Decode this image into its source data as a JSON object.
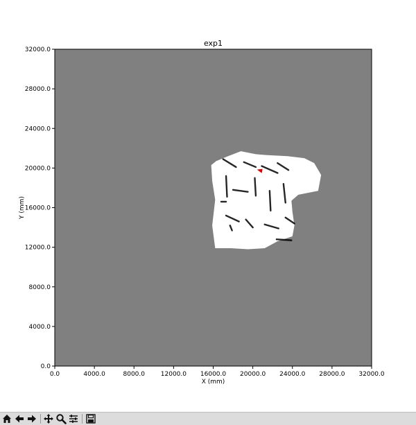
{
  "chart_data": {
    "type": "heatmap",
    "title": "exp1",
    "xlabel": "X (mm)",
    "ylabel": "Y (mm)",
    "xlim": [
      0,
      32000
    ],
    "ylim": [
      0,
      32000
    ],
    "xticks": [
      0,
      4000,
      8000,
      12000,
      16000,
      20000,
      24000,
      28000,
      32000
    ],
    "yticks": [
      0,
      4000,
      8000,
      12000,
      16000,
      20000,
      24000,
      28000,
      32000
    ],
    "xtick_labels": [
      "0.0",
      "4000.0",
      "8000.0",
      "12000.0",
      "16000.0",
      "20000.0",
      "24000.0",
      "28000.0",
      "32000.0"
    ],
    "ytick_labels": [
      "0.0",
      "4000.0",
      "8000.0",
      "12000.0",
      "16000.0",
      "20000.0",
      "24000.0",
      "28000.0",
      "32000.0"
    ],
    "background_color": "#808080",
    "explored_color": "#ffffff",
    "obstacle_color": "#000000",
    "robot_marker": {
      "x": 20700,
      "y": 19700,
      "color": "#e00000"
    },
    "explored_region": [
      [
        15800,
        20300
      ],
      [
        16300,
        20700
      ],
      [
        17500,
        21200
      ],
      [
        18800,
        21700
      ],
      [
        20300,
        21400
      ],
      [
        21500,
        21300
      ],
      [
        23500,
        21200
      ],
      [
        25200,
        21000
      ],
      [
        26200,
        20500
      ],
      [
        26900,
        19300
      ],
      [
        26600,
        17700
      ],
      [
        24600,
        17300
      ],
      [
        23900,
        16700
      ],
      [
        24000,
        15600
      ],
      [
        24200,
        14200
      ],
      [
        24000,
        13100
      ],
      [
        22500,
        12600
      ],
      [
        21200,
        11900
      ],
      [
        19500,
        11800
      ],
      [
        17800,
        11900
      ],
      [
        16200,
        11900
      ],
      [
        15900,
        14200
      ],
      [
        16200,
        16800
      ],
      [
        15900,
        18700
      ]
    ],
    "obstacles": [
      [
        [
          17000,
          20900
        ],
        [
          18300,
          20100
        ]
      ],
      [
        [
          19100,
          20600
        ],
        [
          20300,
          20100
        ]
      ],
      [
        [
          20900,
          20200
        ],
        [
          22500,
          19500
        ]
      ],
      [
        [
          22500,
          20500
        ],
        [
          23600,
          19800
        ]
      ],
      [
        [
          17300,
          19200
        ],
        [
          17400,
          17100
        ]
      ],
      [
        [
          20200,
          19000
        ],
        [
          20300,
          17200
        ]
      ],
      [
        [
          21700,
          17700
        ],
        [
          21800,
          15700
        ]
      ],
      [
        [
          23100,
          18400
        ],
        [
          23300,
          16500
        ]
      ],
      [
        [
          16800,
          16600
        ],
        [
          17300,
          16600
        ]
      ],
      [
        [
          17300,
          15200
        ],
        [
          18600,
          14600
        ]
      ],
      [
        [
          17700,
          14200
        ],
        [
          17900,
          13700
        ]
      ],
      [
        [
          19300,
          14800
        ],
        [
          20000,
          14000
        ]
      ],
      [
        [
          21200,
          14300
        ],
        [
          22600,
          13900
        ]
      ],
      [
        [
          23300,
          15000
        ],
        [
          24200,
          14400
        ]
      ],
      [
        [
          22400,
          12800
        ],
        [
          23900,
          12700
        ]
      ],
      [
        [
          18000,
          17800
        ],
        [
          19500,
          17600
        ]
      ]
    ]
  },
  "toolbar": {
    "buttons": [
      "home-icon",
      "back-icon",
      "forward-icon",
      "pan-icon",
      "zoom-icon",
      "configure-icon",
      "save-icon"
    ]
  }
}
